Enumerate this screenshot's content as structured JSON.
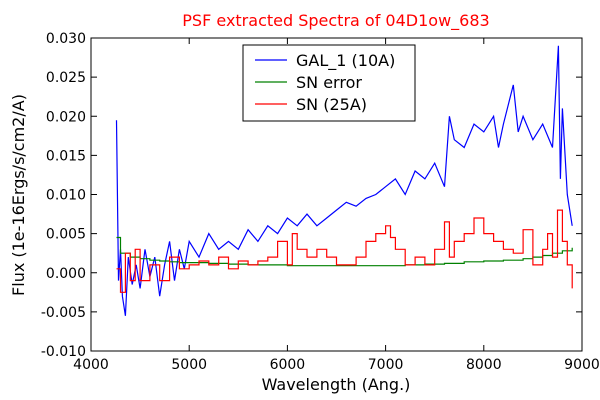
{
  "chart_data": {
    "type": "line",
    "title": "PSF extracted Spectra of 04D1ow_683",
    "xlabel": "Wavelength (Ang.)",
    "ylabel": "Flux (1e-16Ergs/s/cm2/A)",
    "xlim": [
      4000,
      9000
    ],
    "ylim": [
      -0.01,
      0.03
    ],
    "xticks": [
      "4000",
      "5000",
      "6000",
      "7000",
      "8000",
      "9000"
    ],
    "yticks": [
      "-0.010",
      "-0.005",
      "0.000",
      "0.005",
      "0.010",
      "0.015",
      "0.020",
      "0.025",
      "0.030"
    ],
    "grid": false,
    "legend_position": "top-center",
    "series": [
      {
        "name": "GAL_1 (10A)",
        "color": "#0000ff",
        "style": "line",
        "x": [
          4260,
          4280,
          4300,
          4320,
          4350,
          4380,
          4420,
          4460,
          4500,
          4550,
          4600,
          4650,
          4700,
          4750,
          4800,
          4850,
          4900,
          4950,
          5000,
          5100,
          5200,
          5300,
          5400,
          5500,
          5600,
          5700,
          5800,
          5900,
          6000,
          6100,
          6200,
          6300,
          6400,
          6500,
          6600,
          6700,
          6800,
          6900,
          7000,
          7100,
          7200,
          7300,
          7400,
          7500,
          7600,
          7650,
          7700,
          7800,
          7900,
          8000,
          8100,
          8150,
          8200,
          8300,
          8350,
          8400,
          8500,
          8600,
          8700,
          8760,
          8780,
          8800,
          8850,
          8900
        ],
        "y": [
          0.0195,
          -0.001,
          0.003,
          -0.003,
          -0.0055,
          0.002,
          -0.0015,
          0.001,
          -0.002,
          0.003,
          -0.0005,
          0.002,
          -0.003,
          0.001,
          0.004,
          -0.001,
          0.003,
          0.0005,
          0.004,
          0.002,
          0.005,
          0.003,
          0.004,
          0.003,
          0.0055,
          0.004,
          0.006,
          0.005,
          0.007,
          0.006,
          0.0075,
          0.006,
          0.007,
          0.008,
          0.009,
          0.0085,
          0.0095,
          0.01,
          0.011,
          0.012,
          0.01,
          0.013,
          0.012,
          0.014,
          0.011,
          0.02,
          0.017,
          0.016,
          0.019,
          0.018,
          0.02,
          0.016,
          0.019,
          0.024,
          0.018,
          0.02,
          0.017,
          0.019,
          0.016,
          0.029,
          0.012,
          0.021,
          0.01,
          0.006
        ]
      },
      {
        "name": "SN error",
        "color": "#008000",
        "style": "step",
        "x": [
          4260,
          4300,
          4400,
          4500,
          4600,
          4700,
          4800,
          4900,
          5000,
          5200,
          5400,
          5600,
          5800,
          6000,
          6200,
          6400,
          6600,
          6800,
          7000,
          7200,
          7400,
          7600,
          7800,
          8000,
          8200,
          8400,
          8500,
          8600,
          8700,
          8800,
          8900
        ],
        "y": [
          0.0045,
          0.0025,
          0.002,
          0.0018,
          0.0016,
          0.0015,
          0.0014,
          0.0013,
          0.0013,
          0.0012,
          0.0011,
          0.001,
          0.001,
          0.0009,
          0.0009,
          0.0009,
          0.0009,
          0.0009,
          0.0009,
          0.001,
          0.0011,
          0.0012,
          0.0014,
          0.0015,
          0.0016,
          0.0018,
          0.002,
          0.0022,
          0.0025,
          0.0028,
          0.0032
        ]
      },
      {
        "name": "SN (25A)",
        "color": "#ff0000",
        "style": "step",
        "x": [
          4260,
          4300,
          4350,
          4400,
          4450,
          4500,
          4600,
          4700,
          4800,
          4900,
          5000,
          5100,
          5200,
          5300,
          5400,
          5500,
          5600,
          5700,
          5800,
          5900,
          6000,
          6050,
          6100,
          6200,
          6300,
          6400,
          6500,
          6600,
          6700,
          6800,
          6900,
          7000,
          7050,
          7100,
          7200,
          7300,
          7400,
          7500,
          7600,
          7650,
          7700,
          7800,
          7900,
          8000,
          8100,
          8200,
          8300,
          8400,
          8500,
          8600,
          8650,
          8700,
          8750,
          8800,
          8850,
          8900
        ],
        "y": [
          0.0005,
          -0.0025,
          0.0025,
          -0.001,
          0.003,
          -0.001,
          0.001,
          -0.001,
          0.002,
          0.0005,
          0.001,
          0.0015,
          0.001,
          0.002,
          0.0005,
          0.0015,
          0.001,
          0.0015,
          0.002,
          0.004,
          0.001,
          0.005,
          0.003,
          0.002,
          0.003,
          0.002,
          0.001,
          0.001,
          0.002,
          0.004,
          0.005,
          0.006,
          0.0045,
          0.003,
          0.001,
          0.002,
          0.001,
          0.003,
          0.0065,
          0.002,
          0.004,
          0.005,
          0.007,
          0.005,
          0.004,
          0.003,
          0.0025,
          0.0055,
          0.001,
          0.003,
          0.005,
          0.002,
          0.008,
          0.004,
          0.001,
          -0.002
        ]
      }
    ]
  }
}
